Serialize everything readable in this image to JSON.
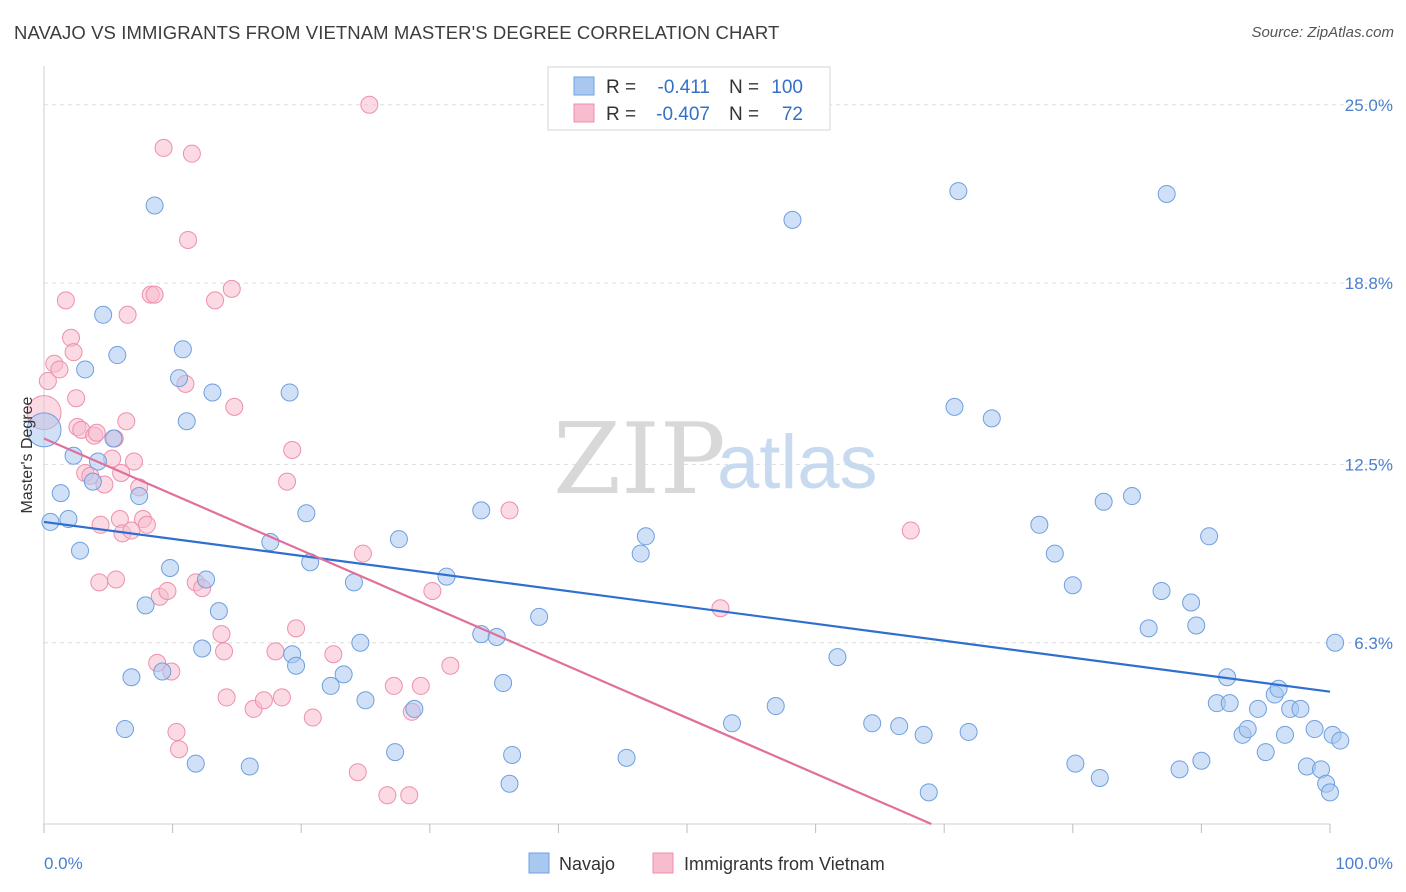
{
  "title": "NAVAJO VS IMMIGRANTS FROM VIETNAM MASTER'S DEGREE CORRELATION CHART",
  "source": "Source: ZipAtlas.com",
  "watermark": {
    "zip": "ZIP",
    "atlas": "atlas"
  },
  "legend_top": {
    "rows": [
      {
        "r_label": "R =",
        "r_value": "-0.411",
        "n_label": "N =",
        "n_value": "100"
      },
      {
        "r_label": "R =",
        "r_value": "-0.407",
        "n_label": "N =",
        "n_value": "72"
      }
    ]
  },
  "legend_bottom": {
    "items": [
      {
        "label": "Navajo"
      },
      {
        "label": "Immigrants from Vietnam"
      }
    ]
  },
  "colors": {
    "navajo_fill": "#a9c8f0",
    "navajo_stroke": "#6f9fe0",
    "navajo_line": "#2f6fd0",
    "vietnam_fill": "#f7bccd",
    "vietnam_stroke": "#ee8fad",
    "vietnam_line": "#e0709a",
    "grid": "#dddddd",
    "tick_label": "#4a7fcf"
  },
  "chart_data": {
    "type": "scatter",
    "title": "NAVAJO VS IMMIGRANTS FROM VIETNAM MASTER'S DEGREE CORRELATION CHART",
    "xlabel": "",
    "ylabel": "Master's Degree",
    "xlim": [
      0,
      100
    ],
    "ylim": [
      0,
      26
    ],
    "x_tick_labels": [
      "0.0%",
      "100.0%"
    ],
    "y_ticks": [
      6.3,
      12.5,
      18.8,
      25.0
    ],
    "y_tick_labels": [
      "6.3%",
      "12.5%",
      "18.8%",
      "25.0%"
    ],
    "grid": "horizontal dashed",
    "legend_position": "top-center",
    "series": [
      {
        "name": "Navajo",
        "r": -0.411,
        "n": 100,
        "trend": {
          "x": [
            0,
            100
          ],
          "y": [
            10.5,
            4.6
          ]
        },
        "points": [
          [
            0,
            13.7
          ],
          [
            0.5,
            10.5
          ],
          [
            1.3,
            11.5
          ],
          [
            1.9,
            10.6
          ],
          [
            2.3,
            12.8
          ],
          [
            2.8,
            9.5
          ],
          [
            3.2,
            15.8
          ],
          [
            3.8,
            11.9
          ],
          [
            4.2,
            12.6
          ],
          [
            4.6,
            17.7
          ],
          [
            5.4,
            13.4
          ],
          [
            5.7,
            16.3
          ],
          [
            6.3,
            3.3
          ],
          [
            6.8,
            5.1
          ],
          [
            7.4,
            11.4
          ],
          [
            7.9,
            7.6
          ],
          [
            8.6,
            21.5
          ],
          [
            9.2,
            5.3
          ],
          [
            9.8,
            8.9
          ],
          [
            10.5,
            15.5
          ],
          [
            10.8,
            16.5
          ],
          [
            11.1,
            14.0
          ],
          [
            11.8,
            2.1
          ],
          [
            12.3,
            6.1
          ],
          [
            12.6,
            8.5
          ],
          [
            13.1,
            15.0
          ],
          [
            13.6,
            7.4
          ],
          [
            16.0,
            2.0
          ],
          [
            17.6,
            9.8
          ],
          [
            19.1,
            15.0
          ],
          [
            19.3,
            5.9
          ],
          [
            19.6,
            5.5
          ],
          [
            20.4,
            10.8
          ],
          [
            20.7,
            9.1
          ],
          [
            22.3,
            4.8
          ],
          [
            23.3,
            5.2
          ],
          [
            24.1,
            8.4
          ],
          [
            24.6,
            6.3
          ],
          [
            25.0,
            4.3
          ],
          [
            27.3,
            2.5
          ],
          [
            27.6,
            9.9
          ],
          [
            28.8,
            4.0
          ],
          [
            31.3,
            8.6
          ],
          [
            34.0,
            10.9
          ],
          [
            34.0,
            6.6
          ],
          [
            35.2,
            6.5
          ],
          [
            35.7,
            4.9
          ],
          [
            36.2,
            1.4
          ],
          [
            36.4,
            2.4
          ],
          [
            38.5,
            7.2
          ],
          [
            45.3,
            2.3
          ],
          [
            46.4,
            9.4
          ],
          [
            46.8,
            10.0
          ],
          [
            53.5,
            3.5
          ],
          [
            56.9,
            4.1
          ],
          [
            58.2,
            21.0
          ],
          [
            61.7,
            5.8
          ],
          [
            64.4,
            3.5
          ],
          [
            66.5,
            3.4
          ],
          [
            68.4,
            3.1
          ],
          [
            68.8,
            1.1
          ],
          [
            70.8,
            14.5
          ],
          [
            71.1,
            22.0
          ],
          [
            71.9,
            3.2
          ],
          [
            73.7,
            14.1
          ],
          [
            77.4,
            10.4
          ],
          [
            78.6,
            9.4
          ],
          [
            80.0,
            8.3
          ],
          [
            80.2,
            2.1
          ],
          [
            82.1,
            1.6
          ],
          [
            82.4,
            11.2
          ],
          [
            84.6,
            11.4
          ],
          [
            85.9,
            6.8
          ],
          [
            86.9,
            8.1
          ],
          [
            87.3,
            21.9
          ],
          [
            88.3,
            1.9
          ],
          [
            89.2,
            7.7
          ],
          [
            89.6,
            6.9
          ],
          [
            90.0,
            2.2
          ],
          [
            90.6,
            10.0
          ],
          [
            91.2,
            4.2
          ],
          [
            92.0,
            5.1
          ],
          [
            92.2,
            4.2
          ],
          [
            93.2,
            3.1
          ],
          [
            93.6,
            3.3
          ],
          [
            94.4,
            4.0
          ],
          [
            95.0,
            2.5
          ],
          [
            95.7,
            4.5
          ],
          [
            96.0,
            4.7
          ],
          [
            96.5,
            3.1
          ],
          [
            96.9,
            4.0
          ],
          [
            97.7,
            4.0
          ],
          [
            98.2,
            2.0
          ],
          [
            98.8,
            3.3
          ],
          [
            99.3,
            1.9
          ],
          [
            99.7,
            1.4
          ],
          [
            100.0,
            1.1
          ],
          [
            100.2,
            3.1
          ],
          [
            100.8,
            2.9
          ],
          [
            100.4,
            6.3
          ]
        ]
      },
      {
        "name": "Immigrants from Vietnam",
        "r": -0.407,
        "n": 72,
        "trend": {
          "x": [
            0,
            69
          ],
          "y": [
            13.4,
            0
          ]
        },
        "points": [
          [
            0,
            14.3
          ],
          [
            0.3,
            15.4
          ],
          [
            0.8,
            16.0
          ],
          [
            1.2,
            15.8
          ],
          [
            1.7,
            18.2
          ],
          [
            2.1,
            16.9
          ],
          [
            2.3,
            16.4
          ],
          [
            2.6,
            13.8
          ],
          [
            2.9,
            13.7
          ],
          [
            3.2,
            12.2
          ],
          [
            3.6,
            12.1
          ],
          [
            3.9,
            13.5
          ],
          [
            4.1,
            13.6
          ],
          [
            4.3,
            8.4
          ],
          [
            4.4,
            10.4
          ],
          [
            4.7,
            11.8
          ],
          [
            5.3,
            12.7
          ],
          [
            5.5,
            13.4
          ],
          [
            5.6,
            8.5
          ],
          [
            5.9,
            10.6
          ],
          [
            6.1,
            10.1
          ],
          [
            6.4,
            14.0
          ],
          [
            6.5,
            17.7
          ],
          [
            6.8,
            10.2
          ],
          [
            7.0,
            12.6
          ],
          [
            7.4,
            11.7
          ],
          [
            7.7,
            10.6
          ],
          [
            8.0,
            10.4
          ],
          [
            8.3,
            18.4
          ],
          [
            8.6,
            18.4
          ],
          [
            8.8,
            5.6
          ],
          [
            9.0,
            7.9
          ],
          [
            9.3,
            23.5
          ],
          [
            9.6,
            8.1
          ],
          [
            9.9,
            5.3
          ],
          [
            10.3,
            3.2
          ],
          [
            10.5,
            2.6
          ],
          [
            11.0,
            15.3
          ],
          [
            11.2,
            20.3
          ],
          [
            11.5,
            23.3
          ],
          [
            11.8,
            8.4
          ],
          [
            12.3,
            8.2
          ],
          [
            13.3,
            18.2
          ],
          [
            13.8,
            6.6
          ],
          [
            14.0,
            6.0
          ],
          [
            14.2,
            4.4
          ],
          [
            14.8,
            14.5
          ],
          [
            16.3,
            4.0
          ],
          [
            17.1,
            4.3
          ],
          [
            18.0,
            6.0
          ],
          [
            18.5,
            4.4
          ],
          [
            18.9,
            11.9
          ],
          [
            19.3,
            13.0
          ],
          [
            19.6,
            6.8
          ],
          [
            20.9,
            3.7
          ],
          [
            22.5,
            5.9
          ],
          [
            24.4,
            1.8
          ],
          [
            24.8,
            9.4
          ],
          [
            25.3,
            25.0
          ],
          [
            26.7,
            1.0
          ],
          [
            27.2,
            4.8
          ],
          [
            28.4,
            1.0
          ],
          [
            28.6,
            3.9
          ],
          [
            29.3,
            4.8
          ],
          [
            30.2,
            8.1
          ],
          [
            31.6,
            5.5
          ],
          [
            36.2,
            10.9
          ],
          [
            52.6,
            7.5
          ],
          [
            67.4,
            10.2
          ],
          [
            14.6,
            18.6
          ],
          [
            6.0,
            12.2
          ],
          [
            2.5,
            14.8
          ]
        ]
      }
    ]
  }
}
